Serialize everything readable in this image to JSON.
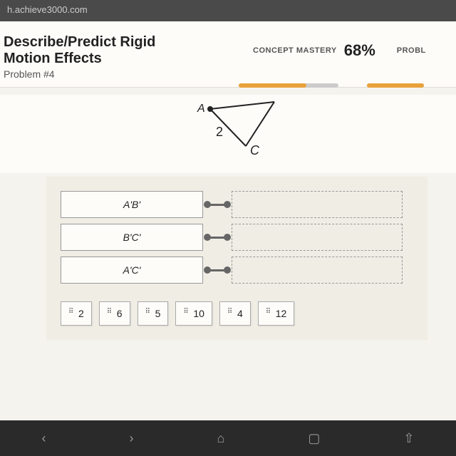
{
  "url": "h.achieve3000.com",
  "header": {
    "title_line1": "Describe/Predict Rigid",
    "title_line2": "Motion Effects",
    "subtitle": "Problem #4",
    "mastery_label": "CONCEPT MASTERY",
    "mastery_pct": "68%",
    "prob_label": "PROBL"
  },
  "progress": {
    "mastery_bar": {
      "width": 140,
      "fill_pct": 68,
      "fill_color": "#e8a23a",
      "bg_color": "#ccc"
    },
    "prob_bar": {
      "width": 80,
      "fill_pct": 100,
      "fill_color": "#e8a23a",
      "bg_color": "#ccc"
    }
  },
  "diagram": {
    "label_A": "A",
    "label_2": "2",
    "label_C": "C",
    "line_color": "#222",
    "point_color": "#222"
  },
  "match": {
    "rows": [
      {
        "label": "A'B'"
      },
      {
        "label": "B'C'"
      },
      {
        "label": "A'C'"
      }
    ]
  },
  "chips": [
    "2",
    "6",
    "5",
    "10",
    "4",
    "12"
  ],
  "colors": {
    "page_bg": "#f5f3ee",
    "panel_bg": "#f0ede5",
    "box_border": "#999"
  }
}
